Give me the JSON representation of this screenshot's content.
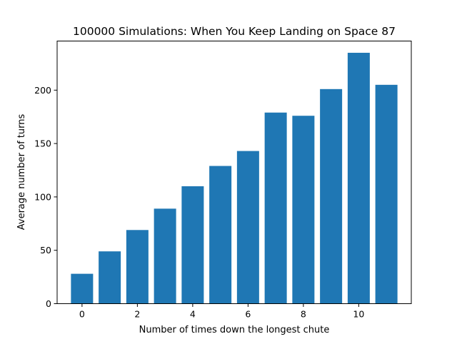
{
  "chart_data": {
    "type": "bar",
    "title": "100000 Simulations: When You Keep Landing on Space 87",
    "xlabel": "Number of times down the longest chute",
    "ylabel": "Average number of turns",
    "x": [
      0,
      1,
      2,
      3,
      4,
      5,
      6,
      7,
      8,
      9,
      10,
      11
    ],
    "values": [
      28,
      49,
      69,
      89,
      110,
      129,
      143,
      179,
      176,
      201,
      235,
      205
    ],
    "xlim": [
      -0.9,
      11.9
    ],
    "ylim": [
      0,
      246
    ],
    "xticks": [
      0,
      2,
      4,
      6,
      8,
      10
    ],
    "yticks": [
      0,
      50,
      100,
      150,
      200
    ],
    "bar_color": "#1f77b4",
    "grid": false,
    "legend": "none"
  }
}
